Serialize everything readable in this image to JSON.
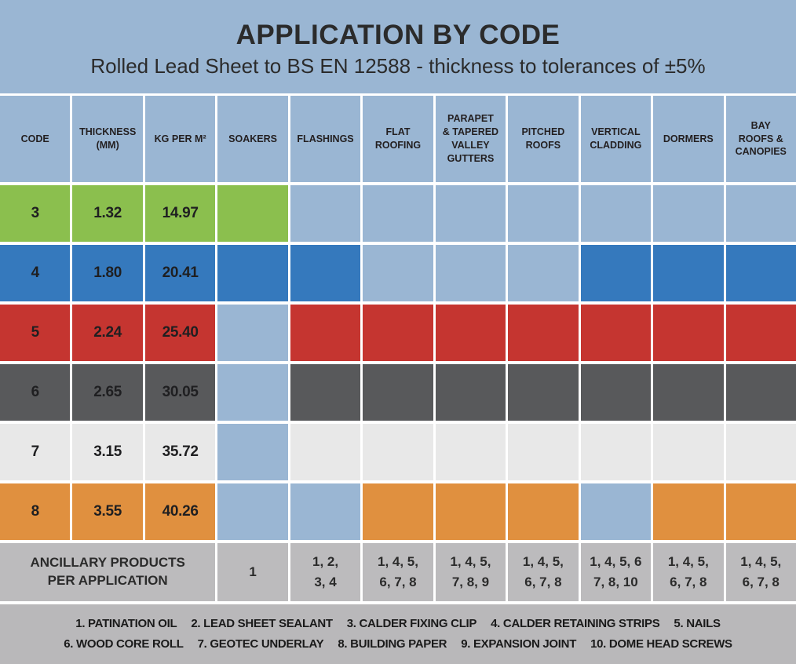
{
  "title": "APPLICATION BY CODE",
  "subtitle": "Rolled Lead Sheet to BS EN 12588 - thickness to tolerances of ±5%",
  "colors": {
    "band_blue": "#9ab6d3",
    "cell_blank_blue": "#9ab6d3",
    "green": "#8bbf4e",
    "blue": "#3579bd",
    "red": "#c53530",
    "dark": "#58595b",
    "light": "#e8e8e8",
    "orange": "#e0903f",
    "gray": "#bcbbbd"
  },
  "chart_data": {
    "type": "table",
    "title": "APPLICATION BY CODE",
    "subtitle": "Rolled Lead Sheet to BS EN 12588 - thickness to tolerances of ±5%",
    "columns": [
      "CODE",
      "THICKNESS\n(MM)",
      "KG PER M²",
      "SOAKERS",
      "FLASHINGS",
      "FLAT\nROOFING",
      "PARAPET\n& TAPERED\nVALLEY\nGUTTERS",
      "PITCHED\nROOFS",
      "VERTICAL\nCLADDING",
      "DORMERS",
      "BAY\nROOFS &\nCANOPIES"
    ],
    "rows": [
      {
        "code": "3",
        "thickness": "1.32",
        "kg": "14.97",
        "color_key": "green",
        "cells": [
          "green",
          "blank",
          "blank",
          "blank",
          "blank",
          "blank",
          "blank",
          "blank"
        ]
      },
      {
        "code": "4",
        "thickness": "1.80",
        "kg": "20.41",
        "color_key": "blue",
        "cells": [
          "blue",
          "blue",
          "blank",
          "blank",
          "blank",
          "blue",
          "blue",
          "blue"
        ]
      },
      {
        "code": "5",
        "thickness": "2.24",
        "kg": "25.40",
        "color_key": "red",
        "cells": [
          "blank",
          "red",
          "red",
          "red",
          "red",
          "red",
          "red",
          "red"
        ]
      },
      {
        "code": "6",
        "thickness": "2.65",
        "kg": "30.05",
        "color_key": "dark",
        "cells": [
          "blank",
          "dark",
          "dark",
          "dark",
          "dark",
          "dark",
          "dark",
          "dark"
        ]
      },
      {
        "code": "7",
        "thickness": "3.15",
        "kg": "35.72",
        "color_key": "light",
        "cells": [
          "blank",
          "light",
          "light",
          "light",
          "light",
          "light",
          "light",
          "light"
        ]
      },
      {
        "code": "8",
        "thickness": "3.55",
        "kg": "40.26",
        "color_key": "orange",
        "cells": [
          "blank",
          "blank",
          "orange",
          "orange",
          "orange",
          "blank",
          "orange",
          "orange"
        ]
      }
    ],
    "ancillary": {
      "label": "ANCILLARY PRODUCTS\nPER APPLICATION",
      "values": [
        "1",
        "1, 2,\n3, 4",
        "1, 4, 5,\n6, 7, 8",
        "1, 4, 5,\n7, 8, 9",
        "1, 4, 5,\n6, 7, 8",
        "1, 4, 5, 6\n7, 8, 10",
        "1, 4, 5,\n6, 7, 8",
        "1, 4, 5,\n6, 7, 8"
      ]
    },
    "legend_lines": [
      [
        "1. PATINATION OIL",
        "2. LEAD SHEET SEALANT",
        "3. CALDER FIXING CLIP",
        "4. CALDER RETAINING STRIPS",
        "5. NAILS"
      ],
      [
        "6. WOOD CORE ROLL",
        "7. GEOTEC UNDERLAY",
        "8. BUILDING PAPER",
        "9. EXPANSION JOINT",
        "10. DOME HEAD SCREWS"
      ]
    ]
  }
}
